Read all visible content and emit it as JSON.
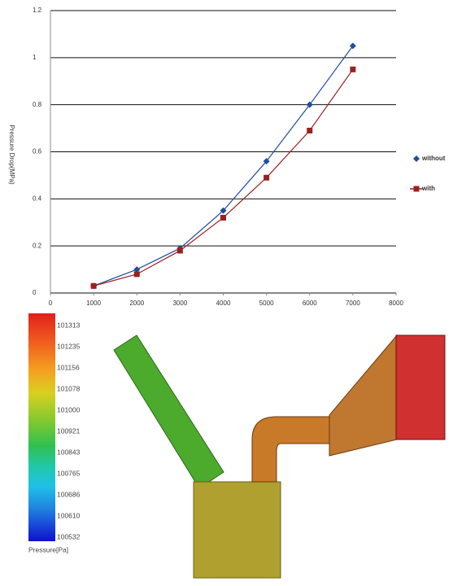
{
  "chart_data": {
    "type": "line",
    "y_label": "Pressure Drop(MPa)",
    "x": [
      1000,
      2000,
      3000,
      4000,
      5000,
      6000,
      7000
    ],
    "series": [
      {
        "name": "without",
        "color": "#1f4e9c",
        "marker": "diamond",
        "values": [
          0.03,
          0.1,
          0.19,
          0.35,
          0.56,
          0.8,
          1.05
        ]
      },
      {
        "name": "with",
        "color": "#9b2020",
        "marker": "square",
        "values": [
          0.03,
          0.08,
          0.18,
          0.32,
          0.49,
          0.69,
          0.95
        ]
      }
    ],
    "xlim": [
      0,
      8000
    ],
    "xticks": [
      0,
      1000,
      2000,
      3000,
      4000,
      5000,
      6000,
      7000,
      8000
    ],
    "ylim": [
      0,
      1.2
    ],
    "yticks": [
      0,
      0.2,
      0.4,
      0.6,
      0.8,
      1,
      1.2
    ],
    "grid": true,
    "legend_position": "right"
  },
  "contour_legend": {
    "title": "Pressure[Pa]",
    "labels": [
      101313,
      101235,
      101156,
      101078,
      101000,
      100921,
      100843,
      100765,
      100686,
      100610,
      100532
    ]
  }
}
